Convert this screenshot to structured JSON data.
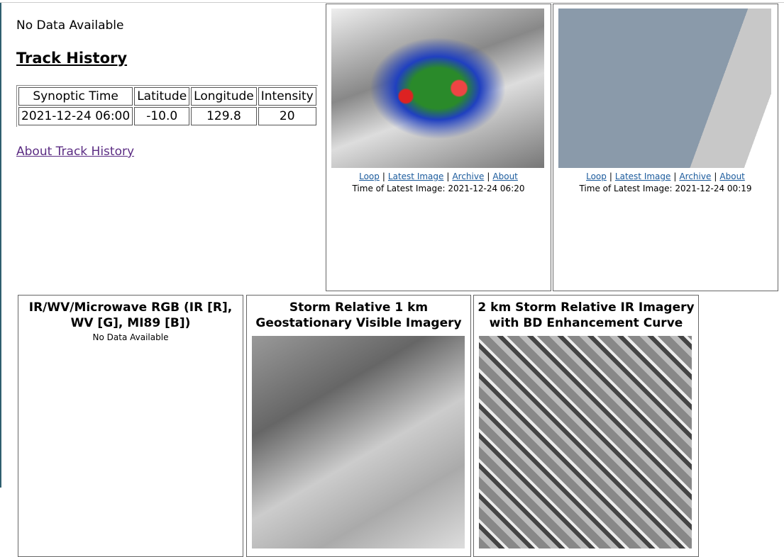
{
  "status": "No Data Available",
  "track_history": {
    "title": "Track History",
    "columns": [
      "Synoptic Time",
      "Latitude",
      "Longitude",
      "Intensity"
    ],
    "rows": [
      [
        "2021-12-24 06:00",
        "-10.0",
        "129.8",
        "20"
      ]
    ],
    "link": "About Track History"
  },
  "link_separator": "|",
  "top_panels": [
    {
      "links": [
        "Loop",
        "Latest Image",
        "Archive",
        "About"
      ],
      "time_label": "Time of Latest Image: 2021-12-24 06:20"
    },
    {
      "links": [
        "Loop",
        "Latest Image",
        "Archive",
        "About"
      ],
      "time_label": "Time of Latest Image: 2021-12-24 00:19"
    }
  ],
  "bottom_panels": [
    {
      "title": "IR/WV/Microwave RGB (IR [R], WV [G], MI89 [B])",
      "status": "No Data Available"
    },
    {
      "title": "Storm Relative 1 km Geostationary Visible Imagery"
    },
    {
      "title": "2 km Storm Relative IR Imagery with BD Enhancement Curve"
    }
  ]
}
